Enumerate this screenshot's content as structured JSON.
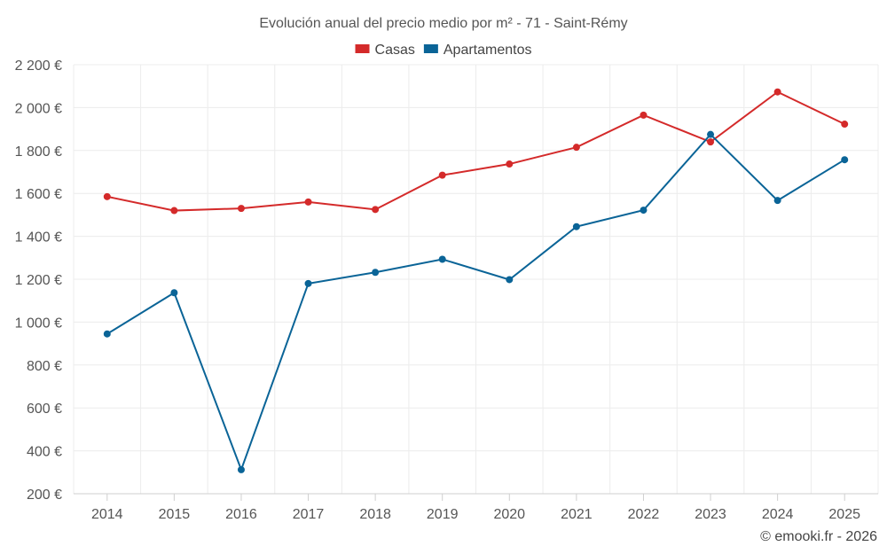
{
  "chart_data": {
    "type": "line",
    "title": "Evolución anual del precio medio por m² - 71 - Saint-Rémy",
    "categories": [
      "2014",
      "2015",
      "2016",
      "2017",
      "2018",
      "2019",
      "2020",
      "2021",
      "2022",
      "2023",
      "2024",
      "2025"
    ],
    "series": [
      {
        "name": "Casas",
        "color": "#d42a2a",
        "values": [
          1585,
          1520,
          1530,
          1560,
          1525,
          1685,
          1737,
          1815,
          1965,
          1840,
          2073,
          1923
        ]
      },
      {
        "name": "Apartamentos",
        "color": "#0a6497",
        "values": [
          945,
          1137,
          312,
          1180,
          1232,
          1293,
          1198,
          1445,
          1522,
          1875,
          1567,
          1757
        ]
      }
    ],
    "ylim": [
      200,
      2200
    ],
    "yticks": [
      200,
      400,
      600,
      800,
      1000,
      1200,
      1400,
      1600,
      1800,
      2000,
      2200
    ],
    "ytick_labels": [
      "200 €",
      "400 €",
      "600 €",
      "800 €",
      "1 000 €",
      "1 200 €",
      "1 400 €",
      "1 600 €",
      "1 800 €",
      "2 000 €",
      "2 200 €"
    ],
    "xlabel": "",
    "ylabel": "",
    "legend_position": "top-center",
    "grid": true
  },
  "credit": "© emooki.fr - 2026"
}
